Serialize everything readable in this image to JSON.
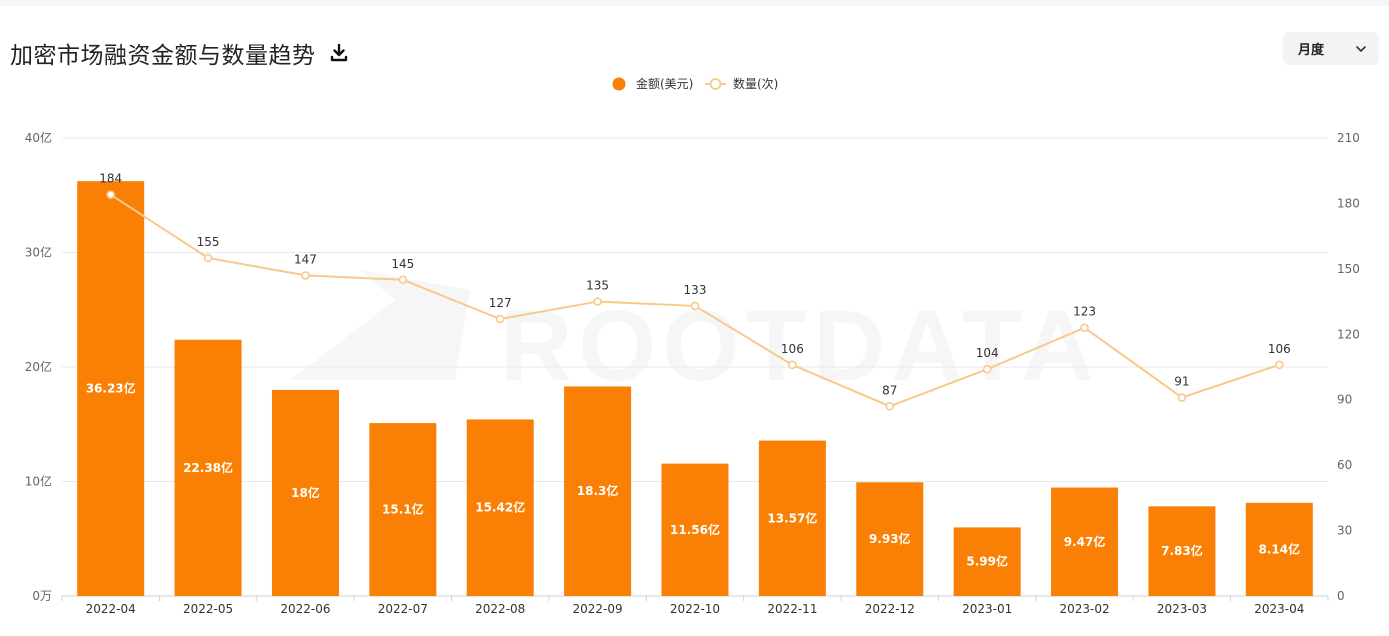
{
  "page": {
    "title": "加密市场融资金额与数量趋势",
    "period_select": {
      "selected": "月度"
    },
    "watermark": "ROOTDATA"
  },
  "colors": {
    "bar": "#fa8005",
    "line": "#f7c98a",
    "grid": "#e9e9e9"
  },
  "icons": {
    "download": "download-icon",
    "dropdown": "chevron-down-icon"
  },
  "chart_data": {
    "type": "bar",
    "title": "加密市场融资金额与数量趋势",
    "categories": [
      "2022-04",
      "2022-05",
      "2022-06",
      "2022-07",
      "2022-08",
      "2022-09",
      "2022-10",
      "2022-11",
      "2022-12",
      "2023-01",
      "2023-02",
      "2023-03",
      "2023-04"
    ],
    "series": [
      {
        "name": "金额(美元)",
        "type": "bar",
        "axis": "left",
        "unit": "亿",
        "values": [
          36.23,
          22.38,
          18,
          15.1,
          15.42,
          18.3,
          11.56,
          13.57,
          9.93,
          5.99,
          9.47,
          7.83,
          8.14
        ],
        "labels": [
          "36.23亿",
          "22.38亿",
          "18亿",
          "15.1亿",
          "15.42亿",
          "18.3亿",
          "11.56亿",
          "13.57亿",
          "9.93亿",
          "5.99亿",
          "9.47亿",
          "7.83亿",
          "8.14亿"
        ]
      },
      {
        "name": "数量(次)",
        "type": "line",
        "axis": "right",
        "values": [
          184,
          155,
          147,
          145,
          127,
          135,
          133,
          106,
          87,
          104,
          123,
          91,
          106
        ]
      }
    ],
    "y_left": {
      "ylim": [
        0,
        40
      ],
      "ticks": [
        "0万",
        "10亿",
        "20亿",
        "30亿",
        "40亿"
      ]
    },
    "y_right": {
      "ylim": [
        0,
        210
      ],
      "ticks": [
        "0",
        "30",
        "60",
        "90",
        "120",
        "150",
        "180",
        "210"
      ]
    },
    "grid": true,
    "legend": "top-center"
  }
}
